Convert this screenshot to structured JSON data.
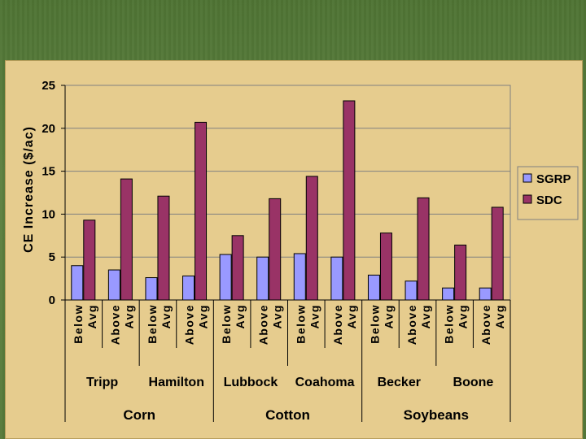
{
  "chart_data": {
    "type": "bar",
    "ylabel": "CE Increase ($/ac)",
    "ylim": [
      0,
      25
    ],
    "yticks": [
      "0",
      "5",
      "10",
      "15",
      "20",
      "25"
    ],
    "grid": true,
    "legend_position": "right",
    "categories": [
      [
        "Below",
        "Avg"
      ],
      [
        "Above",
        "Avg"
      ],
      [
        "Below",
        "Avg"
      ],
      [
        "Above",
        "Avg"
      ],
      [
        "Below",
        "Avg"
      ],
      [
        "Above",
        "Avg"
      ],
      [
        "Below",
        "Avg"
      ],
      [
        "Above",
        "Avg"
      ],
      [
        "Below",
        "Avg"
      ],
      [
        "Above",
        "Avg"
      ],
      [
        "Below",
        "Avg"
      ],
      [
        "Above",
        "Avg"
      ]
    ],
    "sites": [
      "Tripp",
      "Hamilton",
      "Lubbock",
      "Coahoma",
      "Becker",
      "Boone"
    ],
    "crops": [
      "Corn",
      "Cotton",
      "Soybeans"
    ],
    "series": [
      {
        "name": "SGRP",
        "color": "#9999ff",
        "values": [
          4.0,
          3.5,
          2.6,
          2.8,
          5.3,
          5.0,
          5.4,
          5.0,
          2.9,
          2.2,
          1.4,
          1.4
        ]
      },
      {
        "name": "SDC",
        "color": "#993366",
        "values": [
          9.3,
          14.1,
          12.1,
          20.7,
          7.5,
          11.8,
          14.4,
          23.2,
          7.8,
          11.9,
          6.4,
          10.8
        ]
      }
    ]
  }
}
